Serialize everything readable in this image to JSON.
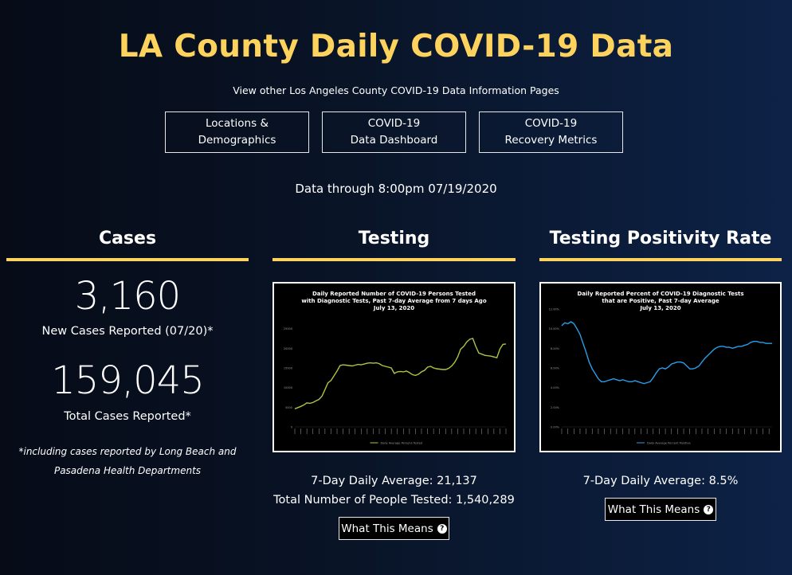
{
  "page": {
    "title": "LA County Daily COVID-19 Data",
    "subtitle": "View other Los Angeles County COVID-19 Data Information Pages",
    "nav": [
      {
        "label": "Locations &\nDemographics"
      },
      {
        "label": "COVID-19\nData Dashboard"
      },
      {
        "label": "COVID-19\nRecovery Metrics"
      }
    ],
    "data_through": "Data through 8:00pm 07/19/2020"
  },
  "cases": {
    "heading": "Cases",
    "new_cases": "3,160",
    "new_cases_label": "New Cases Reported (07/20)*",
    "total_cases": "159,045",
    "total_cases_label": "Total Cases Reported*",
    "footnote": "*including cases reported by Long Beach and Pasadena Health Departments"
  },
  "testing": {
    "heading": "Testing",
    "avg": "7-Day Daily Average: 21,137",
    "total": "Total Number of People Tested: 1,540,289",
    "button": "What This Means",
    "icon": "question-circle-icon"
  },
  "positivity": {
    "heading": "Testing Positivity Rate",
    "avg": "7-Day Daily Average: 8.5%",
    "button": "What This Means",
    "icon": "question-circle-icon"
  },
  "chart_data": [
    {
      "type": "line",
      "title": "Daily Reported Number of COVID-19 Persons Tested with Diagnostic Tests, Past 7-day Average from 7 days Ago July 13, 2020",
      "title_lines": [
        "Daily Reported Number of COVID-19 Persons Tested",
        "with Diagnostic Tests, Past 7-day Average from 7 days Ago",
        "July 13, 2020"
      ],
      "ylim": [
        0,
        30000
      ],
      "yticks": [
        0,
        5000,
        10000,
        15000,
        20000,
        25000
      ],
      "color": "#a9c640",
      "series": [
        {
          "name": "Daily Average Persons Tested",
          "values": [
            4600,
            4900,
            5200,
            5600,
            6100,
            6000,
            6200,
            6600,
            7000,
            7800,
            9500,
            11200,
            11800,
            13000,
            14200,
            15600,
            15800,
            15700,
            15600,
            15500,
            15700,
            15900,
            15800,
            16000,
            16200,
            16300,
            16200,
            16300,
            16100,
            15600,
            15400,
            15200,
            15000,
            13600,
            14000,
            14100,
            14000,
            14200,
            13800,
            13300,
            13100,
            13400,
            14000,
            14400,
            15200,
            15400,
            15000,
            14800,
            14700,
            14600,
            14600,
            14900,
            15500,
            16400,
            17800,
            19800,
            20500,
            21600,
            22300,
            22500,
            20500,
            18800,
            18500,
            18200,
            18100,
            18000,
            17800,
            17600,
            19800,
            21000,
            21100
          ]
        }
      ]
    },
    {
      "type": "line",
      "title": "Daily Reported Percent of COVID-19 Diagnostic Tests that are Positive, Past 7-day Average July 13, 2020",
      "title_lines": [
        "Daily Reported Percent of COVID-19 Diagnostic Tests",
        "that are Positive, Past 7-day Average",
        "July 13, 2020"
      ],
      "ylim": [
        0,
        12
      ],
      "yticks": [
        0,
        2,
        4,
        6,
        8,
        10,
        12
      ],
      "color": "#2a9ee8",
      "series": [
        {
          "name": "Daily Average Percent Positive",
          "values": [
            10.3,
            10.6,
            10.5,
            10.7,
            10.5,
            10.0,
            9.4,
            8.5,
            7.6,
            6.6,
            5.9,
            5.4,
            4.9,
            4.6,
            4.6,
            4.7,
            4.8,
            4.9,
            4.8,
            4.7,
            4.8,
            4.7,
            4.6,
            4.6,
            4.7,
            4.6,
            4.5,
            4.4,
            4.5,
            4.6,
            5.0,
            5.5,
            5.9,
            6.0,
            5.9,
            6.1,
            6.4,
            6.5,
            6.6,
            6.6,
            6.5,
            6.2,
            5.9,
            5.9,
            6.0,
            6.2,
            6.6,
            7.0,
            7.3,
            7.6,
            7.9,
            8.1,
            8.2,
            8.2,
            8.1,
            8.1,
            8.0,
            8.1,
            8.2,
            8.2,
            8.3,
            8.4,
            8.6,
            8.7,
            8.7,
            8.6,
            8.6,
            8.5,
            8.5,
            8.5
          ]
        }
      ]
    }
  ]
}
